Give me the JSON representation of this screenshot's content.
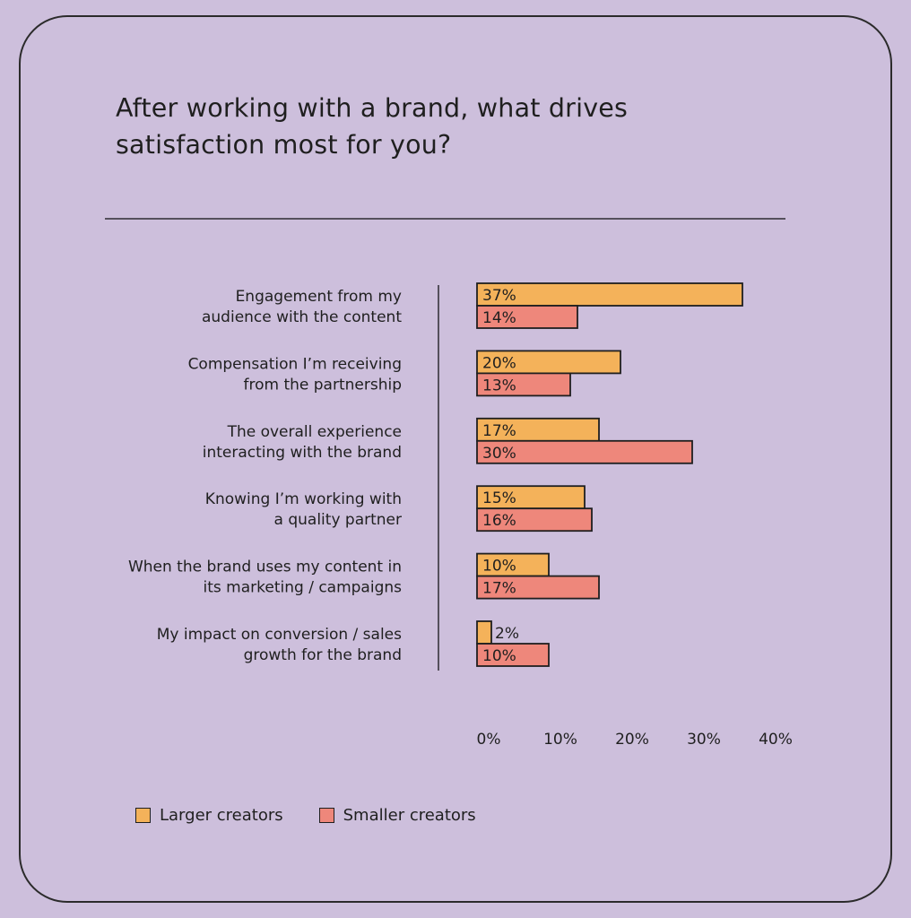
{
  "colors": {
    "larger": "#f4b25a",
    "smaller": "#ee877b",
    "stroke": "#1f1f1f",
    "axis": "#55505c"
  },
  "chart_data": {
    "type": "bar",
    "orientation": "horizontal",
    "title": "After working with a brand, what drives satisfaction most for you?",
    "categories": [
      [
        "Engagement from my",
        "audience with the content"
      ],
      [
        "Compensation I’m receiving",
        "from the partnership"
      ],
      [
        "The overall experience",
        "interacting with the brand"
      ],
      [
        "Knowing I’m working with",
        "a quality partner"
      ],
      [
        "When the brand uses my content in",
        "its marketing / campaigns"
      ],
      [
        "My impact on conversion / sales",
        "growth for the brand"
      ]
    ],
    "series": [
      {
        "name": "Larger creators",
        "values": [
          37,
          20,
          17,
          15,
          10,
          2
        ],
        "labels": [
          "37%",
          "20%",
          "17%",
          "15%",
          "10%",
          "2%"
        ]
      },
      {
        "name": "Smaller creators",
        "values": [
          14,
          13,
          30,
          16,
          17,
          10
        ],
        "labels": [
          "14%",
          "13%",
          "30%",
          "16%",
          "17%",
          "10%"
        ]
      }
    ],
    "xlim": [
      0,
      40
    ],
    "xticks": [
      "0%",
      "10%",
      "20%",
      "30%",
      "40%"
    ],
    "legend_position": "bottom-left",
    "grid": false
  }
}
